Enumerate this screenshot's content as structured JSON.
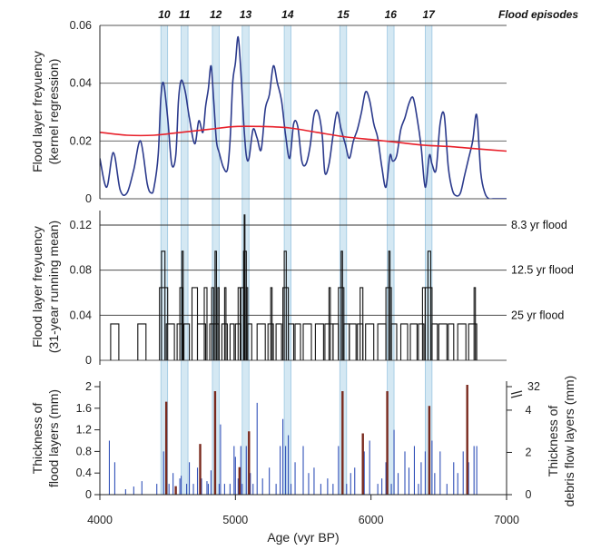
{
  "figure": {
    "x_axis_label": "Age (vyr BP)",
    "x_ticks": [
      "4000",
      "5000",
      "6000",
      "7000"
    ],
    "flood_episodes_label": "Flood episodes",
    "episodes": [
      {
        "label": "10",
        "from": 4450,
        "to": 4500
      },
      {
        "label": "11",
        "from": 4600,
        "to": 4650
      },
      {
        "label": "12",
        "from": 4830,
        "to": 4880
      },
      {
        "label": "13",
        "from": 5050,
        "to": 5100
      },
      {
        "label": "14",
        "from": 5360,
        "to": 5410
      },
      {
        "label": "15",
        "from": 5770,
        "to": 5820
      },
      {
        "label": "16",
        "from": 6120,
        "to": 6170
      },
      {
        "label": "17",
        "from": 6400,
        "to": 6450
      }
    ],
    "panel_a": {
      "ylabel_line1": "Flood layer freyuency",
      "ylabel_line2": "(kernel regression)",
      "y_ticks": [
        "0",
        "0.02",
        "0.04",
        "0.06"
      ]
    },
    "panel_b": {
      "ylabel_line1": "Flood layer freyuency",
      "ylabel_line2": "(31-year running mean)",
      "y_ticks": [
        "0",
        "0.04",
        "0.08",
        "0.12"
      ],
      "threshold_labels": [
        "8.3 yr flood",
        "12.5 yr flood",
        "25 yr flood"
      ]
    },
    "panel_c": {
      "ylabel_left_line1": "Thickness of",
      "ylabel_left_line2": "flood layers (mm)",
      "ylabel_right_line1": "Thickness of",
      "ylabel_right_line2": "debris flow layers (mm)",
      "y_ticks_left": [
        "0",
        "0.4",
        "0.8",
        "1.2",
        "1.6",
        "2"
      ],
      "y_ticks_right": [
        "0",
        "2",
        "4",
        "32"
      ]
    }
  },
  "chart_data": [
    {
      "type": "line",
      "title": "",
      "xlabel": "Age (vyr BP)",
      "ylabel": "Flood layer freyuency (kernel regression)",
      "xlim": [
        4000,
        7000
      ],
      "ylim": [
        0,
        0.06
      ],
      "grid": true,
      "series": [
        {
          "name": "",
          "color": "#2b3a8c",
          "x": [
            4000,
            4050,
            4100,
            4150,
            4200,
            4250,
            4300,
            4350,
            4380,
            4400,
            4430,
            4450,
            4470,
            4500,
            4530,
            4560,
            4580,
            4600,
            4630,
            4660,
            4700,
            4730,
            4760,
            4780,
            4800,
            4820,
            4840,
            4860,
            4880,
            4910,
            4940,
            4960,
            4980,
            5000,
            5020,
            5040,
            5060,
            5080,
            5100,
            5130,
            5160,
            5190,
            5220,
            5250,
            5280,
            5310,
            5340,
            5370,
            5400,
            5430,
            5460,
            5490,
            5520,
            5550,
            5580,
            5610,
            5640,
            5660,
            5690,
            5720,
            5750,
            5780,
            5810,
            5840,
            5870,
            5900,
            5930,
            5960,
            5990,
            6020,
            6050,
            6080,
            6110,
            6140,
            6160,
            6190,
            6220,
            6250,
            6280,
            6310,
            6340,
            6370,
            6400,
            6430,
            6450,
            6480,
            6510,
            6540,
            6570,
            6600,
            6630,
            6660,
            6690,
            6720,
            6750,
            6780,
            6810,
            6840,
            6870,
            6900,
            6950,
            7000
          ],
          "y": [
            0.014,
            0.004,
            0.016,
            0.003,
            0.002,
            0.01,
            0.02,
            0.005,
            0.002,
            0.004,
            0.015,
            0.035,
            0.04,
            0.028,
            0.012,
            0.015,
            0.034,
            0.041,
            0.037,
            0.028,
            0.019,
            0.027,
            0.023,
            0.032,
            0.038,
            0.046,
            0.034,
            0.02,
            0.016,
            0.011,
            0.01,
            0.02,
            0.04,
            0.047,
            0.056,
            0.044,
            0.027,
            0.015,
            0.014,
            0.024,
            0.021,
            0.017,
            0.031,
            0.036,
            0.046,
            0.04,
            0.034,
            0.022,
            0.014,
            0.026,
            0.025,
            0.013,
            0.012,
            0.018,
            0.029,
            0.03,
            0.022,
            0.009,
            0.012,
            0.022,
            0.03,
            0.024,
            0.019,
            0.014,
            0.02,
            0.024,
            0.03,
            0.037,
            0.034,
            0.026,
            0.021,
            0.011,
            0.004,
            0.015,
            0.013,
            0.015,
            0.024,
            0.028,
            0.033,
            0.035,
            0.028,
            0.018,
            0.004,
            0.015,
            0.012,
            0.01,
            0.026,
            0.029,
            0.011,
            0.003,
            0.001,
            0.002,
            0.008,
            0.014,
            0.02,
            0.029,
            0.009,
            0.002,
            0.0,
            0.0,
            0.0,
            0.0
          ]
        },
        {
          "name": "",
          "color": "#e8202a",
          "x": [
            4000,
            4200,
            4400,
            4600,
            4800,
            5000,
            5200,
            5400,
            5600,
            5800,
            6000,
            6200,
            6400,
            6600,
            6800,
            7000
          ],
          "y": [
            0.023,
            0.022,
            0.022,
            0.023,
            0.024,
            0.025,
            0.025,
            0.0245,
            0.023,
            0.0215,
            0.0205,
            0.0195,
            0.0185,
            0.018,
            0.0172,
            0.0165
          ]
        }
      ]
    },
    {
      "type": "line",
      "title": "",
      "xlabel": "Age (vyr BP)",
      "ylabel": "Flood layer freyuency (31-year running mean)",
      "xlim": [
        4000,
        7000
      ],
      "ylim": [
        0,
        0.13
      ],
      "grid": false,
      "thresholds": [
        {
          "label": "8.3 yr flood",
          "value": 0.12
        },
        {
          "label": "12.5 yr flood",
          "value": 0.08
        },
        {
          "label": "25 yr flood",
          "value": 0.04
        }
      ],
      "step_profile": [
        0.0323,
        0.0645,
        0.0968,
        0.129
      ],
      "blocks": [
        [
          4080,
          4140,
          0.0323
        ],
        [
          4280,
          4340,
          0.0323
        ],
        [
          4440,
          4500,
          0.0645
        ],
        [
          4455,
          4480,
          0.0968
        ],
        [
          4490,
          4550,
          0.0323
        ],
        [
          4570,
          4610,
          0.0323
        ],
        [
          4590,
          4610,
          0.0645
        ],
        [
          4605,
          4615,
          0.0968
        ],
        [
          4620,
          4660,
          0.0323
        ],
        [
          4680,
          4720,
          0.0645
        ],
        [
          4720,
          4780,
          0.0323
        ],
        [
          4770,
          4790,
          0.0645
        ],
        [
          4810,
          4840,
          0.0323
        ],
        [
          4825,
          4840,
          0.0645
        ],
        [
          4840,
          4880,
          0.0323
        ],
        [
          4850,
          4860,
          0.0968
        ],
        [
          4870,
          4880,
          0.0645
        ],
        [
          4900,
          4940,
          0.0323
        ],
        [
          4920,
          4930,
          0.0645
        ],
        [
          4960,
          4990,
          0.0323
        ],
        [
          5000,
          5040,
          0.0323
        ],
        [
          5020,
          5035,
          0.0645
        ],
        [
          5040,
          5060,
          0.0645
        ],
        [
          5060,
          5080,
          0.0968
        ],
        [
          5065,
          5070,
          0.129
        ],
        [
          5080,
          5090,
          0.0645
        ],
        [
          5090,
          5120,
          0.0323
        ],
        [
          5160,
          5220,
          0.0323
        ],
        [
          5240,
          5280,
          0.0323
        ],
        [
          5260,
          5270,
          0.0645
        ],
        [
          5300,
          5340,
          0.0323
        ],
        [
          5350,
          5390,
          0.0645
        ],
        [
          5360,
          5375,
          0.0968
        ],
        [
          5390,
          5430,
          0.0323
        ],
        [
          5440,
          5480,
          0.0323
        ],
        [
          5500,
          5560,
          0.0323
        ],
        [
          5590,
          5650,
          0.0323
        ],
        [
          5660,
          5720,
          0.0323
        ],
        [
          5690,
          5700,
          0.0645
        ],
        [
          5720,
          5760,
          0.0323
        ],
        [
          5760,
          5800,
          0.0645
        ],
        [
          5780,
          5790,
          0.0968
        ],
        [
          5800,
          5840,
          0.0323
        ],
        [
          5840,
          5890,
          0.0323
        ],
        [
          5900,
          5940,
          0.0323
        ],
        [
          5920,
          5940,
          0.0645
        ],
        [
          5960,
          6020,
          0.0323
        ],
        [
          6050,
          6110,
          0.0323
        ],
        [
          6110,
          6150,
          0.0645
        ],
        [
          6130,
          6140,
          0.0968
        ],
        [
          6150,
          6190,
          0.0323
        ],
        [
          6220,
          6270,
          0.0323
        ],
        [
          6290,
          6340,
          0.0323
        ],
        [
          6350,
          6390,
          0.0323
        ],
        [
          6380,
          6400,
          0.0645
        ],
        [
          6400,
          6450,
          0.0645
        ],
        [
          6420,
          6440,
          0.0968
        ],
        [
          6450,
          6490,
          0.0323
        ],
        [
          6500,
          6560,
          0.0323
        ],
        [
          6570,
          6610,
          0.0323
        ],
        [
          6640,
          6700,
          0.0323
        ],
        [
          6720,
          6780,
          0.0323
        ],
        [
          6760,
          6770,
          0.0645
        ]
      ]
    },
    {
      "type": "bar",
      "title": "",
      "xlabel": "Age (vyr BP)",
      "ylabel": "Thickness of flood layers (mm)",
      "ylabel_right": "Thickness of debris flow layers (mm)",
      "xlim": [
        4000,
        7000
      ],
      "ylim": [
        0,
        2
      ],
      "ylim_right": [
        0,
        5.2
      ],
      "series": [
        {
          "name": "",
          "color": "#3050b8",
          "x": [
            4070,
            4110,
            4190,
            4250,
            4310,
            4420,
            4470,
            4510,
            4540,
            4590,
            4600,
            4640,
            4660,
            4690,
            4720,
            4750,
            4790,
            4800,
            4820,
            4850,
            4880,
            4890,
            4920,
            4960,
            4990,
            5000,
            5020,
            5040,
            5050,
            5080,
            5110,
            5130,
            5160,
            5200,
            5250,
            5300,
            5330,
            5350,
            5370,
            5390,
            5410,
            5440,
            5500,
            5540,
            5580,
            5630,
            5680,
            5720,
            5760,
            5790,
            5820,
            5850,
            5880,
            5950,
            5990,
            6050,
            6080,
            6110,
            6150,
            6170,
            6200,
            6250,
            6280,
            6320,
            6350,
            6370,
            6400,
            6430,
            6450,
            6470,
            6510,
            6560,
            6610,
            6640,
            6680,
            6720,
            6760,
            6780
          ],
          "y": [
            1.0,
            0.6,
            0.1,
            0.15,
            0.25,
            0.2,
            0.8,
            0.2,
            0.4,
            0.3,
            0.35,
            0.2,
            0.6,
            0.2,
            0.5,
            0.3,
            0.25,
            0.2,
            0.45,
            0.9,
            0.2,
            1.3,
            0.2,
            0.2,
            0.9,
            0.7,
            0.3,
            0.9,
            0.2,
            0.9,
            0.4,
            0.2,
            1.7,
            0.3,
            0.5,
            0.2,
            0.9,
            1.4,
            0.9,
            1.1,
            0.2,
            0.6,
            0.9,
            0.4,
            0.5,
            0.2,
            0.3,
            0.2,
            0.9,
            1.7,
            0.2,
            0.4,
            0.5,
            0.8,
            1.0,
            0.2,
            0.3,
            0.6,
            0.2,
            1.2,
            0.4,
            0.8,
            0.5,
            0.9,
            0.2,
            0.6,
            0.8,
            0.5,
            1.0,
            0.4,
            0.8,
            0.2,
            0.6,
            0.4,
            0.8,
            0.6,
            0.9,
            0.9
          ]
        },
        {
          "name": "",
          "color": "#7a2a1e",
          "axis": "right",
          "x": [
            4490,
            4560,
            4740,
            4850,
            5030,
            5100,
            5790,
            5940,
            6120,
            6430,
            6710
          ],
          "y": [
            4.4,
            0.4,
            2.4,
            4.9,
            1.3,
            3.0,
            4.9,
            2.9,
            4.9,
            4.2,
            5.2
          ]
        }
      ]
    }
  ]
}
